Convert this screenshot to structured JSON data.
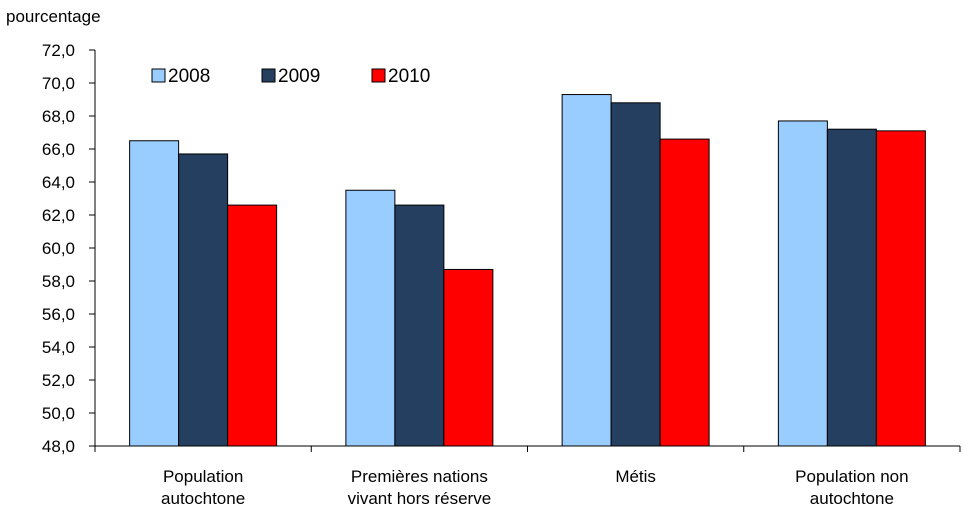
{
  "chart_data": {
    "type": "bar",
    "title": "",
    "ylabel": "pourcentage",
    "xlabel": "",
    "ylim": [
      48.0,
      72.0
    ],
    "ytick_step": 2.0,
    "ytick_labels": [
      "48,0",
      "50,0",
      "52,0",
      "54,0",
      "56,0",
      "58,0",
      "60,0",
      "62,0",
      "64,0",
      "66,0",
      "68,0",
      "70,0",
      "72,0"
    ],
    "categories": [
      [
        "Population",
        "autochtone"
      ],
      [
        "Premières nations",
        "vivant hors réserve"
      ],
      [
        "Métis"
      ],
      [
        "Population non",
        "autochtone"
      ]
    ],
    "series": [
      {
        "name": "2008",
        "color": "#99ccff",
        "values": [
          66.5,
          63.5,
          69.3,
          67.7
        ]
      },
      {
        "name": "2009",
        "color": "#243f60",
        "values": [
          65.7,
          62.6,
          68.8,
          67.2
        ]
      },
      {
        "name": "2010",
        "color": "#ff0000",
        "values": [
          62.6,
          58.7,
          66.6,
          67.1
        ]
      }
    ],
    "legend_position": "top-left",
    "grid": false
  }
}
